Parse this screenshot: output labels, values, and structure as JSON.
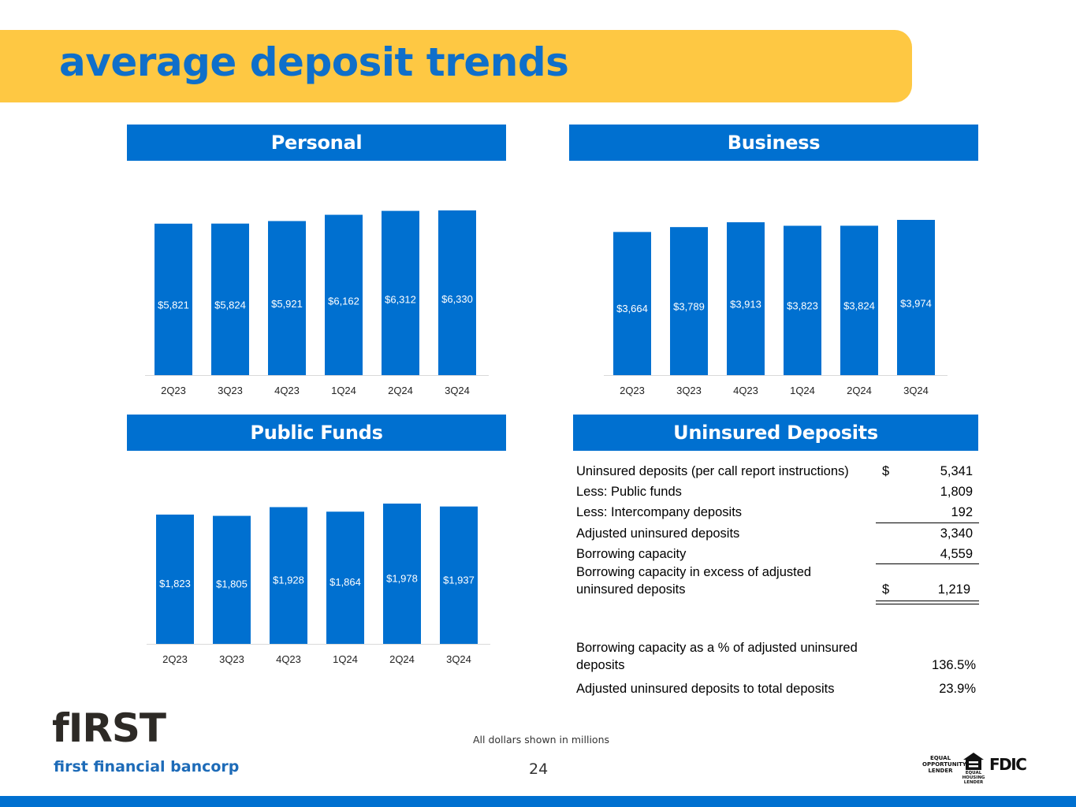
{
  "title": "average deposit trends",
  "panels": {
    "personal": "Personal",
    "business": "Business",
    "public_funds": "Public Funds",
    "uninsured": "Uninsured Deposits"
  },
  "chart_data": [
    {
      "id": "personal",
      "type": "bar",
      "title": "Personal",
      "categories": [
        "2Q23",
        "3Q23",
        "4Q23",
        "1Q24",
        "2Q24",
        "3Q24"
      ],
      "values": [
        5821,
        5824,
        5921,
        6162,
        6312,
        6330
      ],
      "labels": [
        "$5,821",
        "$5,824",
        "$5,921",
        "$6,162",
        "$6,312",
        "$6,330"
      ],
      "color": "#0070d0",
      "grid": false
    },
    {
      "id": "business",
      "type": "bar",
      "title": "Business",
      "categories": [
        "2Q23",
        "3Q23",
        "4Q23",
        "1Q24",
        "2Q24",
        "3Q24"
      ],
      "values": [
        3664,
        3789,
        3913,
        3823,
        3824,
        3974
      ],
      "labels": [
        "$3,664",
        "$3,789",
        "$3,913",
        "$3,823",
        "$3,824",
        "$3,974"
      ],
      "color": "#0070d0",
      "grid": false
    },
    {
      "id": "public_funds",
      "type": "bar",
      "title": "Public Funds",
      "categories": [
        "2Q23",
        "3Q23",
        "4Q23",
        "1Q24",
        "2Q24",
        "3Q24"
      ],
      "values": [
        1823,
        1805,
        1928,
        1864,
        1978,
        1937
      ],
      "labels": [
        "$1,823",
        "$1,805",
        "$1,928",
        "$1,864",
        "$1,978",
        "$1,937"
      ],
      "color": "#0070d0",
      "grid": false
    },
    {
      "id": "uninsured",
      "type": "table",
      "title": "Uninsured Deposits",
      "rows": [
        {
          "label": "Uninsured deposits (per call report instructions)",
          "currency": "$",
          "value": "5,341"
        },
        {
          "label": "Less: Public funds",
          "value": "1,809"
        },
        {
          "label": "Less: Intercompany deposits",
          "value": "192"
        },
        {
          "label": "Adjusted uninsured deposits",
          "value": "3,340"
        },
        {
          "label": "Borrowing capacity",
          "value": "4,559"
        },
        {
          "label": "Borrowing capacity in excess of adjusted uninsured deposits",
          "currency": "$",
          "value": "1,219"
        },
        {
          "label": "Borrowing capacity as a % of adjusted uninsured deposits",
          "value": "136.5%"
        },
        {
          "label": "Adjusted uninsured deposits to total deposits",
          "value": "23.9%"
        }
      ]
    }
  ],
  "table_text": {
    "r0_label": "Uninsured deposits (per call report instructions)",
    "r0_cur": "$",
    "r0_val": "5,341",
    "r1_label": "Less: Public funds",
    "r1_val": "1,809",
    "r2_label": "Less: Intercompany deposits",
    "r2_val": "192",
    "r3_label": "Adjusted uninsured deposits",
    "r3_val": "3,340",
    "r4_label": "Borrowing capacity",
    "r4_val": "4,559",
    "r5_label_a": "Borrowing capacity in excess of adjusted",
    "r5_label_b": "uninsured deposits",
    "r5_cur": "$",
    "r5_val": "1,219",
    "r6_label_a": "Borrowing capacity as a % of adjusted uninsured",
    "r6_label_b": "deposits",
    "r6_val": "136.5%",
    "r7_label": "Adjusted uninsured deposits to total deposits",
    "r7_val": "23.9%"
  },
  "footer": {
    "note": "All dollars shown in millions",
    "page": "24",
    "logo_word": "fIRST",
    "logo_sub": "first financial bancorp",
    "eol": "EQUAL OPPORTUNITY LENDER",
    "ehl": "EQUAL HOUSING LENDER",
    "fdic": "FDIC"
  },
  "colors": {
    "brand_blue": "#0070d0",
    "title_blue": "#0f6fca",
    "band_yellow": "#fec843"
  }
}
